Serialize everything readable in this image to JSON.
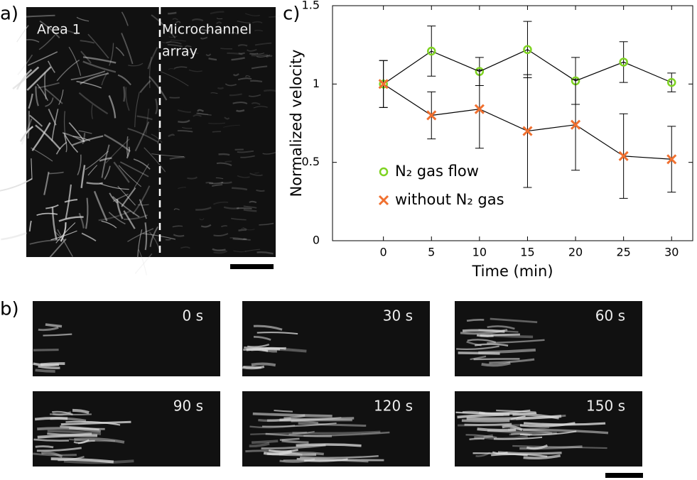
{
  "panels": {
    "a": {
      "label": "a)",
      "area_label": "Area 1",
      "channel_label": [
        "Microchannel",
        "array"
      ]
    },
    "b": {
      "label": "b)",
      "frames": [
        "0 s",
        "30 s",
        "60 s",
        "90 s",
        "120 s",
        "150 s"
      ]
    },
    "c": {
      "label": "c)"
    }
  },
  "chart_data": {
    "type": "line",
    "x_label": "Time (min)",
    "y_label": "Normalized velocity",
    "x": [
      0,
      5,
      10,
      15,
      20,
      25,
      30
    ],
    "xlim": [
      -5.3,
      32.2
    ],
    "ylim": [
      0,
      1.5
    ],
    "xticks": [
      0,
      5,
      10,
      15,
      20,
      25,
      30
    ],
    "yticks": [
      0,
      0.5,
      1,
      1.5
    ],
    "legend": "center-left",
    "series": [
      {
        "name": "N₂ gas flow",
        "color": "#7ed321",
        "marker": "circle",
        "values": [
          1.0,
          1.21,
          1.08,
          1.22,
          1.02,
          1.14,
          1.01
        ],
        "errors": [
          0.15,
          0.16,
          0.09,
          0.18,
          0.15,
          0.13,
          0.06
        ]
      },
      {
        "name": "without N₂ gas",
        "color": "#f07030",
        "marker": "x",
        "values": [
          1.0,
          0.8,
          0.84,
          0.7,
          0.74,
          0.54,
          0.52
        ],
        "errors": [
          0.15,
          0.15,
          0.25,
          0.36,
          0.29,
          0.27,
          0.21
        ]
      }
    ]
  }
}
